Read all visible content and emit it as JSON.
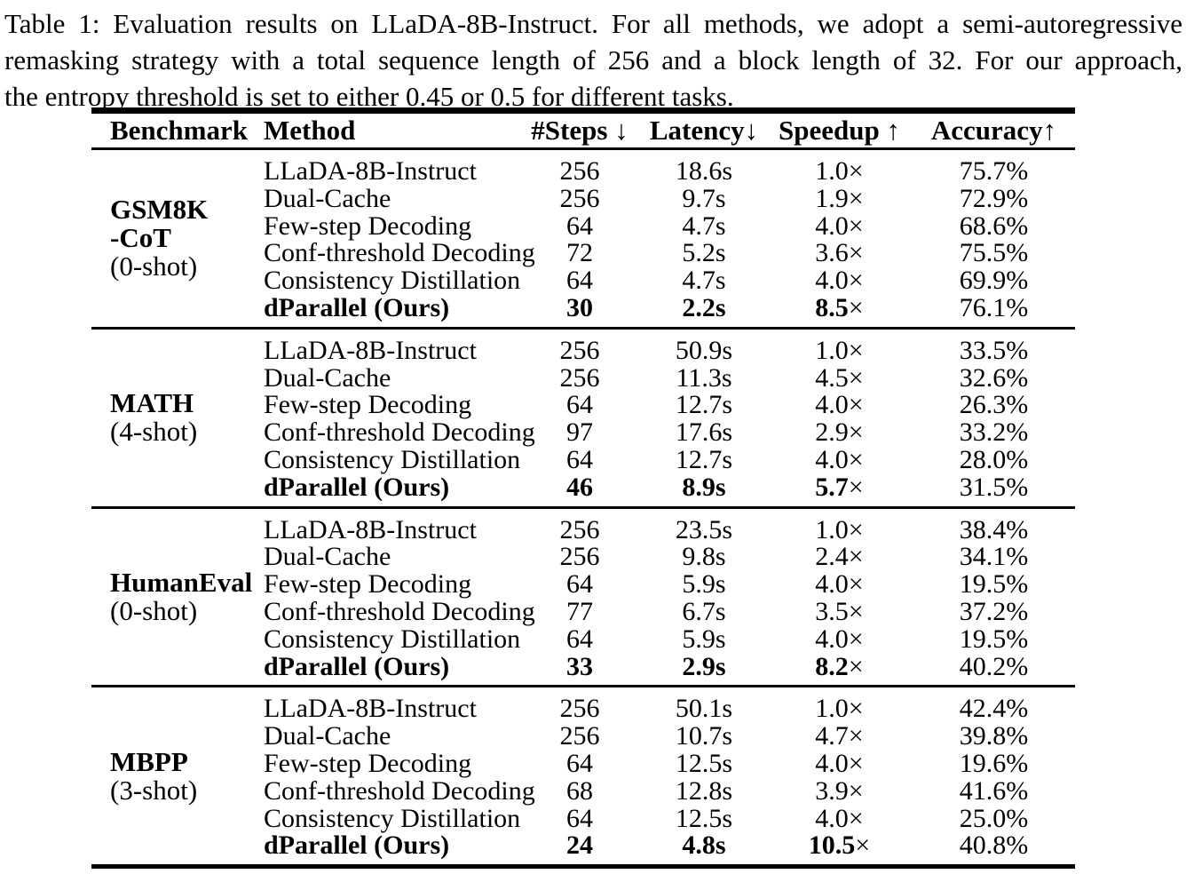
{
  "caption": {
    "lines": [
      "Table 1: Evaluation results on LLaDA-8B-Instruct. For all methods, we adopt a semi-autoregressive",
      "remasking strategy with a total sequence length of 256 and a block length of 32. For our approach,",
      "the entropy threshold is set to either 0.45 or 0.5 for different tasks."
    ]
  },
  "table": {
    "symbols": {
      "times": "×"
    },
    "columns": [
      {
        "label": "Benchmark",
        "arrow": ""
      },
      {
        "label": "Method",
        "arrow": ""
      },
      {
        "label": "#Steps",
        "arrow": " ↓"
      },
      {
        "label": "Latency",
        "arrow": "↓"
      },
      {
        "label": "Speedup",
        "arrow": " ↑"
      },
      {
        "label": "Accuracy",
        "arrow": "↑"
      }
    ],
    "sections": [
      {
        "benchmark": [
          "GSM8K",
          "-CoT",
          "(0-shot)"
        ],
        "rows": [
          {
            "method": "LLaDA-8B-Instruct",
            "steps": "256",
            "latency": "18.6s",
            "speedup": "1.0",
            "accuracy": "75.7%"
          },
          {
            "method": "Dual-Cache",
            "steps": "256",
            "latency": "9.7s",
            "speedup": "1.9",
            "accuracy": "72.9%"
          },
          {
            "method": "Few-step Decoding",
            "steps": "64",
            "latency": "4.7s",
            "speedup": "4.0",
            "accuracy": "68.6%"
          },
          {
            "method": "Conf-threshold Decoding",
            "steps": "72",
            "latency": "5.2s",
            "speedup": "3.6",
            "accuracy": "75.5%"
          },
          {
            "method": "Consistency Distillation",
            "steps": "64",
            "latency": "4.7s",
            "speedup": "4.0",
            "accuracy": "69.9%"
          },
          {
            "method": "dParallel (Ours)",
            "steps": "30",
            "latency": "2.2s",
            "speedup": "8.5",
            "accuracy": "76.1%"
          }
        ]
      },
      {
        "benchmark": [
          "MATH",
          "(4-shot)"
        ],
        "rows": [
          {
            "method": "LLaDA-8B-Instruct",
            "steps": "256",
            "latency": "50.9s",
            "speedup": "1.0",
            "accuracy": "33.5%"
          },
          {
            "method": "Dual-Cache",
            "steps": "256",
            "latency": "11.3s",
            "speedup": "4.5",
            "accuracy": "32.6%"
          },
          {
            "method": "Few-step Decoding",
            "steps": "64",
            "latency": "12.7s",
            "speedup": "4.0",
            "accuracy": "26.3%"
          },
          {
            "method": "Conf-threshold Decoding",
            "steps": "97",
            "latency": "17.6s",
            "speedup": "2.9",
            "accuracy": "33.2%"
          },
          {
            "method": "Consistency Distillation",
            "steps": "64",
            "latency": "12.7s",
            "speedup": "4.0",
            "accuracy": "28.0%"
          },
          {
            "method": "dParallel (Ours)",
            "steps": "46",
            "latency": "8.9s",
            "speedup": "5.7",
            "accuracy": "31.5%"
          }
        ]
      },
      {
        "benchmark": [
          "HumanEval",
          "(0-shot)"
        ],
        "rows": [
          {
            "method": "LLaDA-8B-Instruct",
            "steps": "256",
            "latency": "23.5s",
            "speedup": "1.0",
            "accuracy": "38.4%"
          },
          {
            "method": "Dual-Cache",
            "steps": "256",
            "latency": "9.8s",
            "speedup": "2.4",
            "accuracy": "34.1%"
          },
          {
            "method": "Few-step Decoding",
            "steps": "64",
            "latency": "5.9s",
            "speedup": "4.0",
            "accuracy": "19.5%"
          },
          {
            "method": "Conf-threshold Decoding",
            "steps": "77",
            "latency": "6.7s",
            "speedup": "3.5",
            "accuracy": "37.2%"
          },
          {
            "method": "Consistency Distillation",
            "steps": "64",
            "latency": "5.9s",
            "speedup": "4.0",
            "accuracy": "19.5%"
          },
          {
            "method": "dParallel (Ours)",
            "steps": "33",
            "latency": "2.9s",
            "speedup": "8.2",
            "accuracy": "40.2%"
          }
        ]
      },
      {
        "benchmark": [
          "MBPP",
          "(3-shot)"
        ],
        "rows": [
          {
            "method": "LLaDA-8B-Instruct",
            "steps": "256",
            "latency": "50.1s",
            "speedup": "1.0",
            "accuracy": "42.4%"
          },
          {
            "method": "Dual-Cache",
            "steps": "256",
            "latency": "10.7s",
            "speedup": "4.7",
            "accuracy": "39.8%"
          },
          {
            "method": "Few-step Decoding",
            "steps": "64",
            "latency": "12.5s",
            "speedup": "4.0",
            "accuracy": "19.6%"
          },
          {
            "method": "Conf-threshold Decoding",
            "steps": "68",
            "latency": "12.8s",
            "speedup": "3.9",
            "accuracy": "41.6%"
          },
          {
            "method": "Consistency Distillation",
            "steps": "64",
            "latency": "12.5s",
            "speedup": "4.0",
            "accuracy": "25.0%"
          },
          {
            "method": "dParallel (Ours)",
            "steps": "24",
            "latency": "4.8s",
            "speedup": "10.5",
            "accuracy": "40.8%"
          }
        ]
      }
    ]
  }
}
